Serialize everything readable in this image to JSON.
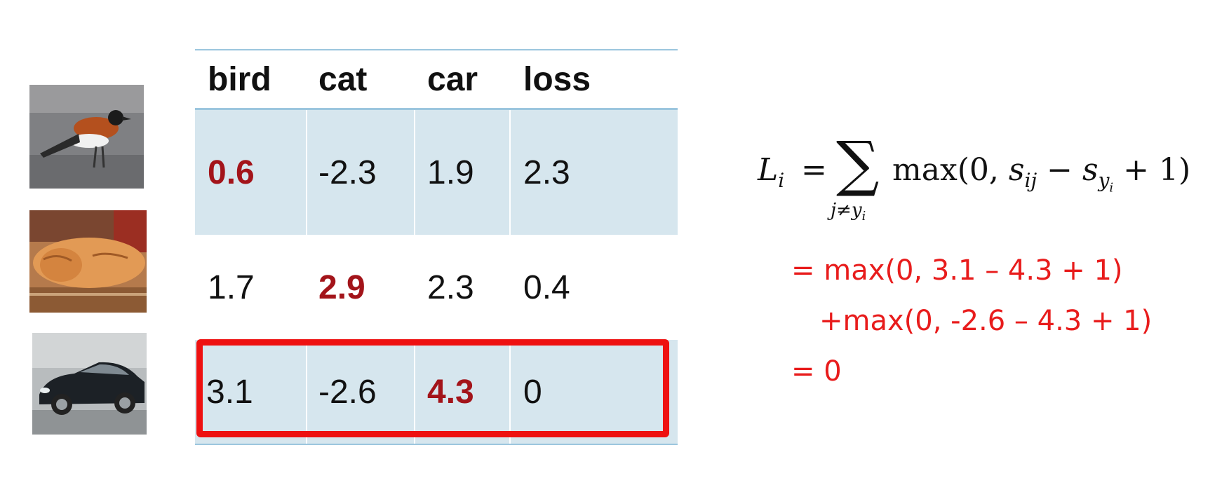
{
  "table": {
    "headers": [
      "bird",
      "cat",
      "car",
      "loss"
    ],
    "rows": [
      {
        "cells": [
          "0.6",
          "-2.3",
          "1.9",
          "2.3"
        ],
        "correct_index": 0
      },
      {
        "cells": [
          "1.7",
          "2.9",
          "2.3",
          "0.4"
        ],
        "correct_index": 1
      },
      {
        "cells": [
          "3.1",
          "-2.6",
          "4.3",
          "0"
        ],
        "correct_index": 2
      }
    ],
    "highlighted_row": 2
  },
  "images": [
    {
      "subject": "bird-photo"
    },
    {
      "subject": "cat-photo"
    },
    {
      "subject": "car-photo"
    }
  ],
  "formula": {
    "lhs": "L",
    "lhs_sub": "i",
    "equals": "=",
    "sigma": "∑",
    "under": "j≠y",
    "under_sub": "i",
    "body_prefix": "max(0, ",
    "s": "s",
    "s1_sub": "ij",
    "minus": " − ",
    "s2_sub": "y",
    "s2_subsub": "i",
    "body_suffix": " + 1)"
  },
  "steps": [
    "= max(0, 3.1 – 4.3 + 1)",
    "+max(0, -2.6 – 4.3 + 1)",
    "= 0"
  ],
  "colors": {
    "accent_red": "#e81c1c",
    "correct_score": "#a3141a",
    "row_shade": "#d6e6ee",
    "rule": "#9cc6de"
  }
}
